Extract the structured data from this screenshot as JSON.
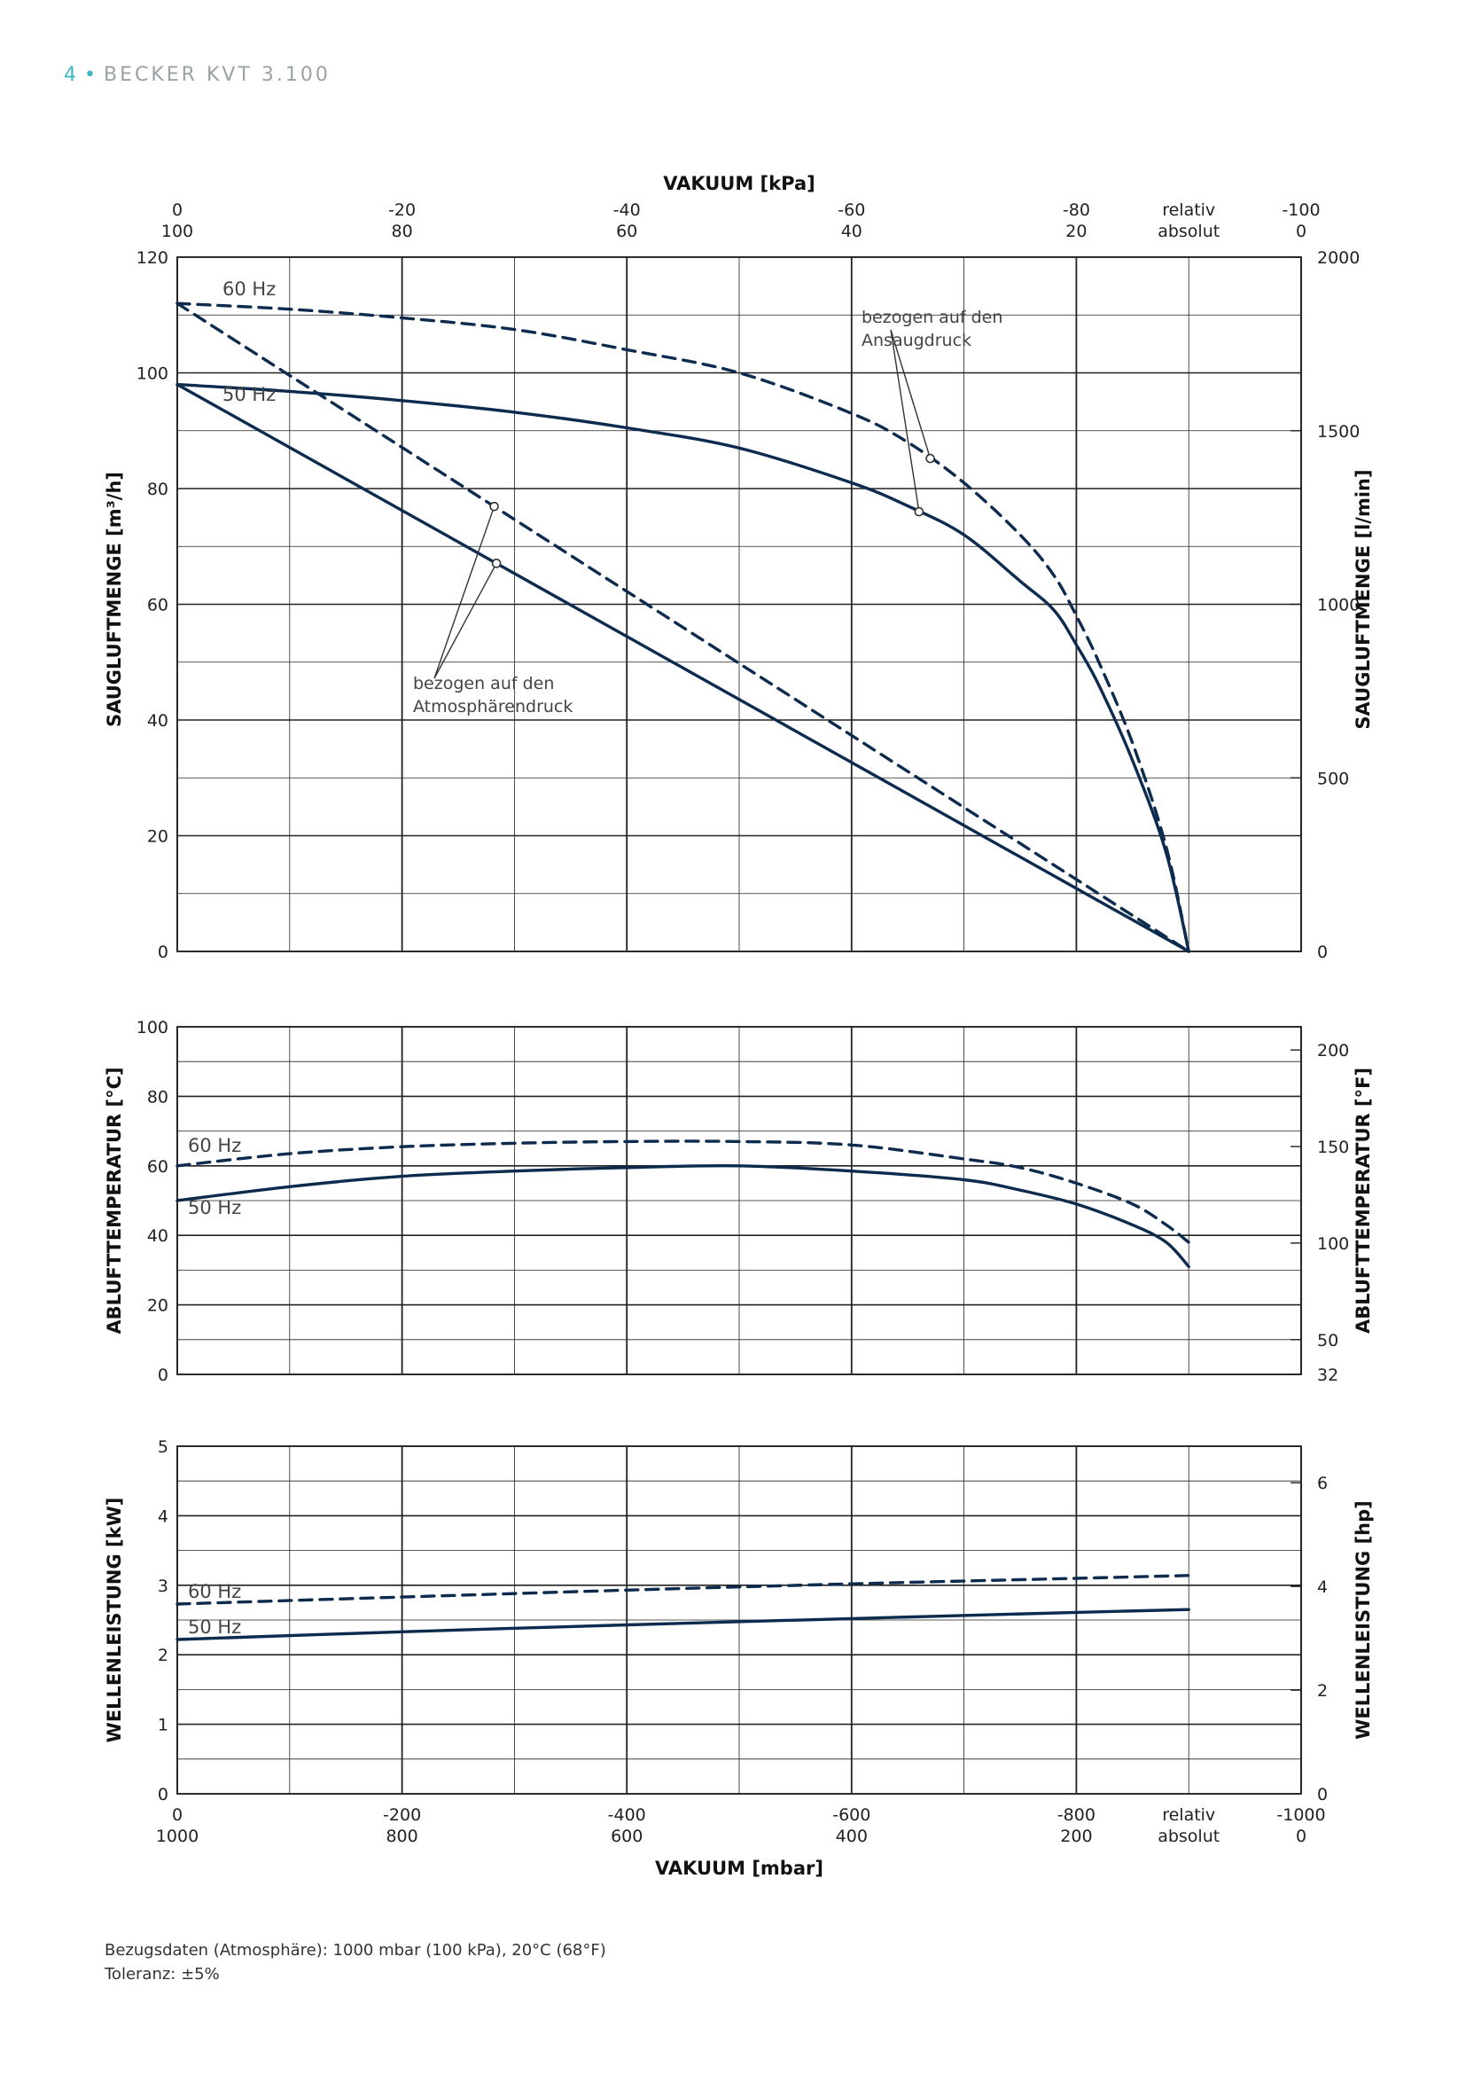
{
  "header": {
    "page_number": "4",
    "separator": "•",
    "title": "BECKER KVT 3.100"
  },
  "colors": {
    "curve": "#0d2b4e",
    "grid": "#222222",
    "accent": "#3db7c6"
  },
  "axes": {
    "top_title": "VAKUUM  [kPa]",
    "top_relative_ticks": [
      "0",
      "-20",
      "-40",
      "-60",
      "-80",
      "relativ",
      "-100"
    ],
    "top_absolute_ticks": [
      "100",
      "80",
      "60",
      "40",
      "20",
      "absolut",
      "0"
    ],
    "bottom_title": "VAKUUM  [mbar]",
    "bottom_relative_ticks": [
      "0",
      "-200",
      "-400",
      "-600",
      "-800",
      "relativ",
      "-1000"
    ],
    "bottom_absolute_ticks": [
      "1000",
      "800",
      "600",
      "400",
      "200",
      "absolut",
      "0"
    ]
  },
  "annotations": {
    "ansaug_line1": "bezogen auf den",
    "ansaug_line2": "Ansaugdruck",
    "atmos_line1": "bezogen auf den",
    "atmos_line2": "Atmosphärendruck"
  },
  "footnote": {
    "line1": "Bezugsdaten (Atmosphäre): 1000 mbar (100 kPa), 20°C (68°F)",
    "line2": "Toleranz: ±5%"
  },
  "chart_data": [
    {
      "type": "line",
      "id": "saugluftmenge",
      "ylabel": "SAUGLUFTMENGE [m³/h]",
      "y2label": "SAUGLUFTMENGE [l/min]",
      "xlabel": "VAKUUM [mbar]",
      "xlim": [
        0,
        -1000
      ],
      "ylim": [
        0,
        120
      ],
      "y_ticks": [
        "0",
        "20",
        "40",
        "60",
        "80",
        "100",
        "120"
      ],
      "y2_ticks": [
        "0",
        "500",
        "1000",
        "1500",
        "2000"
      ],
      "grid": true,
      "series": [
        {
          "name": "60 Hz",
          "style": "dashed",
          "reference": "Ansaugdruck",
          "x": [
            0,
            -100,
            -200,
            -300,
            -400,
            -500,
            -600,
            -650,
            -700,
            -750,
            -780,
            -800,
            -820,
            -850,
            -880,
            -900
          ],
          "y": [
            112,
            111,
            109.5,
            107.5,
            104,
            100,
            93,
            88,
            81,
            72,
            65,
            58,
            50,
            36,
            18,
            0
          ]
        },
        {
          "name": "50 Hz",
          "style": "solid",
          "reference": "Ansaugdruck",
          "x": [
            0,
            -100,
            -200,
            -300,
            -400,
            -500,
            -600,
            -650,
            -700,
            -750,
            -780,
            -800,
            -820,
            -850,
            -880,
            -900
          ],
          "y": [
            98,
            96.8,
            95.2,
            93.2,
            90.5,
            87,
            81,
            77,
            72,
            64,
            59,
            53,
            46,
            33,
            17,
            0
          ]
        },
        {
          "name": "60 Hz",
          "style": "dashed",
          "reference": "Atmosphärendruck",
          "x": [
            0,
            -900
          ],
          "y": [
            112,
            0
          ]
        },
        {
          "name": "50 Hz",
          "style": "solid",
          "reference": "Atmosphärendruck",
          "x": [
            0,
            -900
          ],
          "y": [
            98,
            0
          ]
        }
      ]
    },
    {
      "type": "line",
      "id": "ablufttemperatur",
      "ylabel": "ABLUFTTEMPERATUR [°C]",
      "y2label": "ABLUFTTEMPERATUR [°F]",
      "xlim": [
        0,
        -1000
      ],
      "ylim": [
        0,
        100
      ],
      "y_ticks": [
        "0",
        "20",
        "40",
        "60",
        "80",
        "100"
      ],
      "y2_ticks": [
        "32",
        "50",
        "100",
        "150",
        "200"
      ],
      "grid": true,
      "series": [
        {
          "name": "60 Hz",
          "style": "dashed",
          "x": [
            0,
            -100,
            -200,
            -300,
            -400,
            -500,
            -600,
            -700,
            -750,
            -800,
            -850,
            -880,
            -900
          ],
          "y": [
            60,
            63.5,
            65.5,
            66.5,
            67,
            67,
            66,
            62,
            59.5,
            55,
            49,
            43,
            38
          ]
        },
        {
          "name": "50 Hz",
          "style": "solid",
          "x": [
            0,
            -100,
            -200,
            -300,
            -400,
            -500,
            -600,
            -700,
            -750,
            -800,
            -850,
            -880,
            -900
          ],
          "y": [
            50,
            54,
            57,
            58.5,
            59.5,
            60,
            58.5,
            56,
            53,
            49,
            43,
            38,
            31
          ]
        }
      ]
    },
    {
      "type": "line",
      "id": "wellenleistung",
      "ylabel": "WELLENLEISTUNG [kW]",
      "y2label": "WELLENLEISTUNG [hp]",
      "xlim": [
        0,
        -1000
      ],
      "ylim": [
        0,
        5
      ],
      "y_ticks": [
        "0",
        "1",
        "2",
        "3",
        "4",
        "5"
      ],
      "y2_ticks": [
        "0",
        "2",
        "4",
        "6"
      ],
      "grid": true,
      "series": [
        {
          "name": "60 Hz",
          "style": "dashed",
          "x": [
            0,
            -200,
            -400,
            -600,
            -800,
            -900
          ],
          "y": [
            2.73,
            2.83,
            2.93,
            3.02,
            3.1,
            3.14
          ]
        },
        {
          "name": "50 Hz",
          "style": "solid",
          "x": [
            0,
            -200,
            -400,
            -600,
            -800,
            -900
          ],
          "y": [
            2.22,
            2.33,
            2.43,
            2.52,
            2.61,
            2.65
          ]
        }
      ]
    }
  ]
}
